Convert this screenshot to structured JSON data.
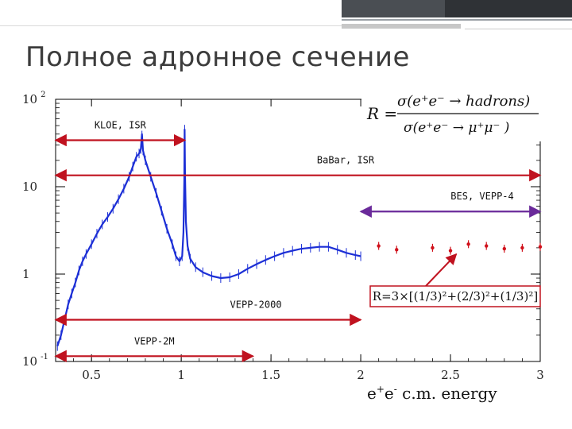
{
  "slide": {
    "title": "Полное адронное сечение"
  },
  "chart_data": {
    "type": "line",
    "x_scale": "linear",
    "y_scale": "log",
    "xlim": [
      0.3,
      3.0
    ],
    "ylim": [
      0.1,
      100
    ],
    "x_ticks": [
      {
        "value": 0.5,
        "label": "0.5"
      },
      {
        "value": 1,
        "label": "1"
      },
      {
        "value": 1.5,
        "label": "1.5"
      },
      {
        "value": 2,
        "label": "2"
      },
      {
        "value": 2.5,
        "label": "2.5"
      },
      {
        "value": 3,
        "label": "3"
      }
    ],
    "y_ticks": [
      {
        "value": 100,
        "base": "10",
        "exp": "2"
      },
      {
        "value": 10,
        "base": "10",
        "exp": ""
      },
      {
        "value": 1,
        "base": "1",
        "exp": ""
      },
      {
        "value": 0.1,
        "base": "10",
        "exp": "-1"
      }
    ],
    "xlabel": {
      "main": "e",
      "sup1": "+",
      "mid": "e",
      "sup2": "-",
      "rest": " c.m. energy"
    },
    "ylabel": "",
    "formula": {
      "lhs": "R =",
      "numerator": "σ(e⁺e⁻ → hadrons)",
      "denominator": "σ(e⁺e⁻ → μ⁺μ⁻ )"
    },
    "series": [
      {
        "style": "line",
        "color": "#1c2fd6",
        "points": [
          [
            0.31,
            0.15
          ],
          [
            0.33,
            0.2
          ],
          [
            0.35,
            0.3
          ],
          [
            0.37,
            0.45
          ],
          [
            0.39,
            0.6
          ],
          [
            0.41,
            0.8
          ],
          [
            0.43,
            1.1
          ],
          [
            0.45,
            1.4
          ],
          [
            0.47,
            1.7
          ],
          [
            0.5,
            2.2
          ],
          [
            0.53,
            2.9
          ],
          [
            0.56,
            3.7
          ],
          [
            0.59,
            4.5
          ],
          [
            0.62,
            5.6
          ],
          [
            0.65,
            7.2
          ],
          [
            0.68,
            9.5
          ],
          [
            0.71,
            13.0
          ],
          [
            0.73,
            17.0
          ],
          [
            0.75,
            22.0
          ],
          [
            0.765,
            24.0
          ],
          [
            0.775,
            27.0
          ],
          [
            0.781,
            40.0
          ],
          [
            0.787,
            26.0
          ],
          [
            0.8,
            20.0
          ],
          [
            0.83,
            13.0
          ],
          [
            0.86,
            8.5
          ],
          [
            0.89,
            5.3
          ],
          [
            0.92,
            3.3
          ],
          [
            0.95,
            2.2
          ],
          [
            0.97,
            1.6
          ],
          [
            0.99,
            1.4
          ],
          [
            1.005,
            1.6
          ],
          [
            1.012,
            3.0
          ],
          [
            1.017,
            12.0
          ],
          [
            1.019,
            45.0
          ],
          [
            1.021,
            14.0
          ],
          [
            1.026,
            4.0
          ],
          [
            1.035,
            2.1
          ],
          [
            1.05,
            1.5
          ],
          [
            1.08,
            1.2
          ],
          [
            1.12,
            1.05
          ],
          [
            1.17,
            0.95
          ],
          [
            1.22,
            0.9
          ],
          [
            1.27,
            0.92
          ],
          [
            1.32,
            1.0
          ],
          [
            1.37,
            1.15
          ],
          [
            1.42,
            1.3
          ],
          [
            1.47,
            1.45
          ],
          [
            1.52,
            1.6
          ],
          [
            1.57,
            1.75
          ],
          [
            1.62,
            1.85
          ],
          [
            1.67,
            1.95
          ],
          [
            1.72,
            2.0
          ],
          [
            1.77,
            2.05
          ],
          [
            1.82,
            2.05
          ],
          [
            1.87,
            1.9
          ],
          [
            1.92,
            1.75
          ],
          [
            1.97,
            1.65
          ],
          [
            2.0,
            1.6
          ]
        ]
      },
      {
        "style": "points",
        "color": "#d0101a",
        "points": [
          [
            2.1,
            2.1
          ],
          [
            2.2,
            1.9
          ],
          [
            2.4,
            2.0
          ],
          [
            2.5,
            1.85
          ],
          [
            2.6,
            2.2
          ],
          [
            2.7,
            2.1
          ],
          [
            2.8,
            1.95
          ],
          [
            2.9,
            2.0
          ],
          [
            3.0,
            2.05
          ]
        ]
      }
    ],
    "ranges": [
      {
        "label": "KLOE, ISR",
        "x0": 0.3,
        "x1": 1.02,
        "y": 34,
        "color": "#c0121f"
      },
      {
        "label": "BaBar, ISR",
        "x0": 0.3,
        "x1": 3.0,
        "y": 13.5,
        "color": "#c0121f"
      },
      {
        "label": "BES, VEPP-4",
        "x0": 2.0,
        "x1": 3.0,
        "y": 5.2,
        "color": "#6a2a9a"
      },
      {
        "label": "VEPP-2000",
        "x0": 0.3,
        "x1": 2.0,
        "y": 0.3,
        "color": "#c0121f"
      },
      {
        "label": "VEPP-2M",
        "x0": 0.3,
        "x1": 1.4,
        "y": 0.115,
        "color": "#c0121f"
      }
    ],
    "annotations": [
      {
        "text": "R=3×[(1/3)²+(2/3)²+(1/3)²]",
        "x": 2.55,
        "y": 2.0,
        "color": "#c0121f"
      }
    ]
  }
}
